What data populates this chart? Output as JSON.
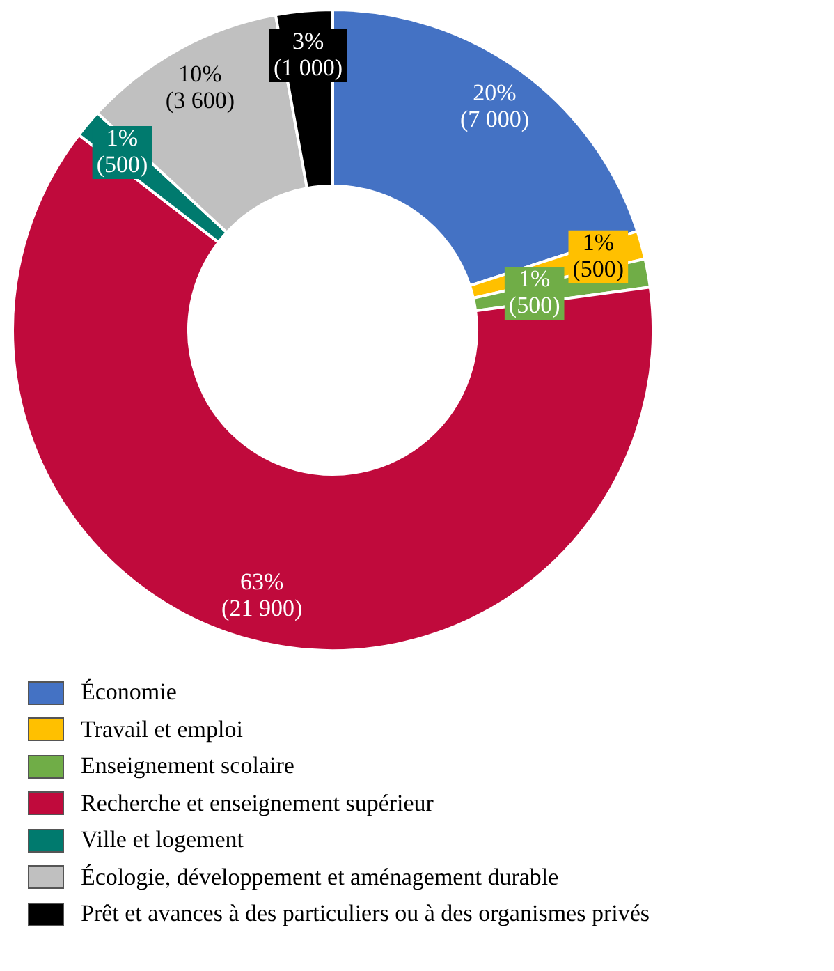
{
  "chart_data": {
    "type": "donut",
    "categories": [
      "Économie",
      "Travail et emploi",
      "Enseignement scolaire",
      "Recherche et enseignement supérieur",
      "Ville et logement",
      "Écologie, développement et aménagement durable",
      "Prêt et avances à des particuliers ou à des organismes privés"
    ],
    "values": [
      7000,
      500,
      500,
      21900,
      500,
      3600,
      1000
    ],
    "value_labels": [
      "20%\n(7 000)",
      "1%\n(500)",
      "1%\n(500)",
      "63%\n(21 900)",
      "1%\n(500)",
      "10%\n(3 600)",
      "3%\n(1 000)"
    ],
    "colors": [
      "#4472c4",
      "#ffc000",
      "#70ad47",
      "#c00a3c",
      "#007a6e",
      "#c0c0c0",
      "#000000"
    ],
    "legend": "bottom"
  }
}
